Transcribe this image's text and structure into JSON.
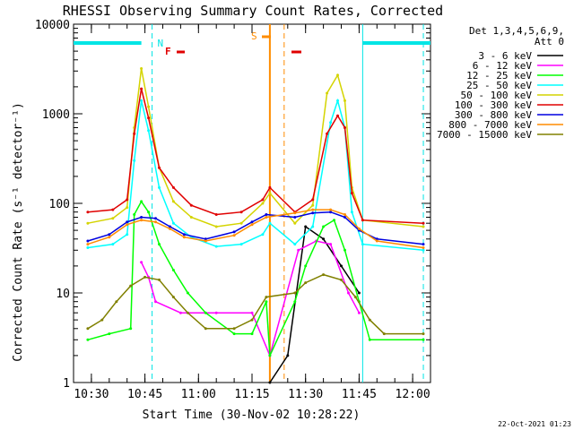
{
  "chart_data": {
    "type": "line",
    "title": "RHESSI Observing Summary Count Rates, Corrected",
    "xlabel": "Start Time (30-Nov-02 10:28:22)",
    "ylabel": "Corrected Count Rate (s⁻¹ detector⁻¹)",
    "yscale": "log",
    "ylim": [
      1,
      10000
    ],
    "xlim": [
      "10:25",
      "12:05"
    ],
    "x_ticks": [
      "10:30",
      "10:45",
      "11:00",
      "11:15",
      "11:30",
      "11:45",
      "12:00"
    ],
    "y_ticks": [
      "1",
      "10",
      "100",
      "1000",
      "10000"
    ],
    "legend_header": [
      "Det 1,3,4,5,6,9,",
      "Att 0"
    ],
    "legend_position": "right",
    "timestamp": "22-Oct-2021 01:23",
    "flags": [
      {
        "label": "N",
        "color": "#00e5e5"
      },
      {
        "label": "F",
        "color": "#e00000"
      },
      {
        "label": "S",
        "color": "#ff8c00"
      }
    ],
    "series": [
      {
        "name": "3 - 6 keV",
        "color": "#000000",
        "points": [
          [
            "11:20",
            1
          ],
          [
            "11:25",
            2
          ],
          [
            "11:30",
            55
          ],
          [
            "11:35",
            40
          ],
          [
            "11:40",
            20
          ],
          [
            "11:45",
            10
          ]
        ]
      },
      {
        "name": "6 - 12 keV",
        "color": "#ff00ff",
        "points": [
          [
            "10:44",
            22
          ],
          [
            "10:46",
            15
          ],
          [
            "10:48",
            8
          ],
          [
            "10:55",
            6
          ],
          [
            "11:05",
            6
          ],
          [
            "11:15",
            6
          ],
          [
            "11:20",
            2
          ],
          [
            "11:28",
            30
          ],
          [
            "11:33",
            38
          ],
          [
            "11:37",
            35
          ],
          [
            "11:42",
            10
          ],
          [
            "11:45",
            6
          ]
        ]
      },
      {
        "name": "12 - 25 keV",
        "color": "#00ff00",
        "points": [
          [
            "10:29",
            3
          ],
          [
            "10:35",
            3.5
          ],
          [
            "10:41",
            4
          ],
          [
            "10:42",
            75
          ],
          [
            "10:44",
            105
          ],
          [
            "10:46",
            80
          ],
          [
            "10:49",
            35
          ],
          [
            "10:53",
            18
          ],
          [
            "10:57",
            10
          ],
          [
            "11:02",
            6
          ],
          [
            "11:10",
            3.5
          ],
          [
            "11:15",
            3.5
          ],
          [
            "11:19",
            8
          ],
          [
            "11:20",
            2
          ],
          [
            "11:27",
            8
          ],
          [
            "11:30",
            20
          ],
          [
            "11:35",
            55
          ],
          [
            "11:38",
            65
          ],
          [
            "11:41",
            30
          ],
          [
            "11:45",
            8
          ],
          [
            "11:48",
            3
          ],
          [
            "12:03",
            3
          ]
        ]
      },
      {
        "name": "25 - 50 keV",
        "color": "#00ffff",
        "points": [
          [
            "10:29",
            32
          ],
          [
            "10:36",
            35
          ],
          [
            "10:40",
            45
          ],
          [
            "10:42",
            300
          ],
          [
            "10:44",
            1400
          ],
          [
            "10:46",
            650
          ],
          [
            "10:49",
            150
          ],
          [
            "10:53",
            60
          ],
          [
            "10:58",
            42
          ],
          [
            "11:05",
            33
          ],
          [
            "11:12",
            35
          ],
          [
            "11:18",
            45
          ],
          [
            "11:20",
            60
          ],
          [
            "11:27",
            35
          ],
          [
            "11:32",
            55
          ],
          [
            "11:37",
            800
          ],
          [
            "11:39",
            1400
          ],
          [
            "11:41",
            700
          ],
          [
            "11:43",
            80
          ],
          [
            "11:46",
            35
          ],
          [
            "12:03",
            30
          ]
        ]
      },
      {
        "name": "50 - 100 keV",
        "color": "#d4d400",
        "points": [
          [
            "10:29",
            60
          ],
          [
            "10:36",
            68
          ],
          [
            "10:40",
            90
          ],
          [
            "10:42",
            700
          ],
          [
            "10:44",
            3200
          ],
          [
            "10:46",
            1200
          ],
          [
            "10:49",
            250
          ],
          [
            "10:53",
            105
          ],
          [
            "10:58",
            70
          ],
          [
            "11:05",
            55
          ],
          [
            "11:12",
            60
          ],
          [
            "11:18",
            100
          ],
          [
            "11:20",
            130
          ],
          [
            "11:27",
            60
          ],
          [
            "11:32",
            95
          ],
          [
            "11:36",
            1700
          ],
          [
            "11:39",
            2700
          ],
          [
            "11:41",
            1400
          ],
          [
            "11:43",
            150
          ],
          [
            "11:46",
            65
          ],
          [
            "12:03",
            55
          ]
        ]
      },
      {
        "name": "100 - 300 keV",
        "color": "#e00000",
        "points": [
          [
            "10:29",
            80
          ],
          [
            "10:36",
            85
          ],
          [
            "10:40",
            110
          ],
          [
            "10:42",
            600
          ],
          [
            "10:44",
            1900
          ],
          [
            "10:46",
            900
          ],
          [
            "10:49",
            250
          ],
          [
            "10:53",
            150
          ],
          [
            "10:58",
            95
          ],
          [
            "11:05",
            75
          ],
          [
            "11:12",
            80
          ],
          [
            "11:18",
            110
          ],
          [
            "11:20",
            150
          ],
          [
            "11:27",
            80
          ],
          [
            "11:32",
            110
          ],
          [
            "11:36",
            600
          ],
          [
            "11:39",
            950
          ],
          [
            "11:41",
            700
          ],
          [
            "11:43",
            130
          ],
          [
            "11:46",
            65
          ],
          [
            "12:03",
            60
          ]
        ]
      },
      {
        "name": "300 - 800 keV",
        "color": "#0000e0",
        "points": [
          [
            "10:29",
            38
          ],
          [
            "10:35",
            45
          ],
          [
            "10:40",
            62
          ],
          [
            "10:44",
            70
          ],
          [
            "10:48",
            68
          ],
          [
            "10:52",
            55
          ],
          [
            "10:56",
            45
          ],
          [
            "11:02",
            40
          ],
          [
            "11:10",
            48
          ],
          [
            "11:15",
            62
          ],
          [
            "11:19",
            75
          ],
          [
            "11:27",
            70
          ],
          [
            "11:32",
            78
          ],
          [
            "11:37",
            80
          ],
          [
            "11:41",
            70
          ],
          [
            "11:45",
            50
          ],
          [
            "11:50",
            40
          ],
          [
            "12:03",
            35
          ]
        ]
      },
      {
        "name": "800 - 7000 keV",
        "color": "#ff8c00",
        "points": [
          [
            "10:29",
            35
          ],
          [
            "10:35",
            42
          ],
          [
            "10:40",
            58
          ],
          [
            "10:44",
            65
          ],
          [
            "10:48",
            62
          ],
          [
            "10:52",
            52
          ],
          [
            "10:56",
            42
          ],
          [
            "11:02",
            38
          ],
          [
            "11:10",
            44
          ],
          [
            "11:15",
            58
          ],
          [
            "11:19",
            70
          ],
          [
            "11:27",
            78
          ],
          [
            "11:32",
            85
          ],
          [
            "11:37",
            85
          ],
          [
            "11:41",
            75
          ],
          [
            "11:45",
            52
          ],
          [
            "11:50",
            38
          ],
          [
            "12:03",
            32
          ]
        ]
      },
      {
        "name": "7000 - 15000 keV",
        "color": "#808000",
        "points": [
          [
            "10:29",
            4
          ],
          [
            "10:33",
            5
          ],
          [
            "10:37",
            8
          ],
          [
            "10:41",
            12
          ],
          [
            "10:45",
            15
          ],
          [
            "10:49",
            14
          ],
          [
            "10:53",
            9
          ],
          [
            "10:57",
            6
          ],
          [
            "11:02",
            4
          ],
          [
            "11:10",
            4
          ],
          [
            "11:15",
            5
          ],
          [
            "11:19",
            9
          ],
          [
            "11:27",
            10
          ],
          [
            "11:30",
            13
          ],
          [
            "11:35",
            16
          ],
          [
            "11:40",
            14
          ],
          [
            "11:44",
            9
          ],
          [
            "11:48",
            5
          ],
          [
            "11:52",
            3.5
          ],
          [
            "12:03",
            3.5
          ]
        ]
      }
    ]
  }
}
